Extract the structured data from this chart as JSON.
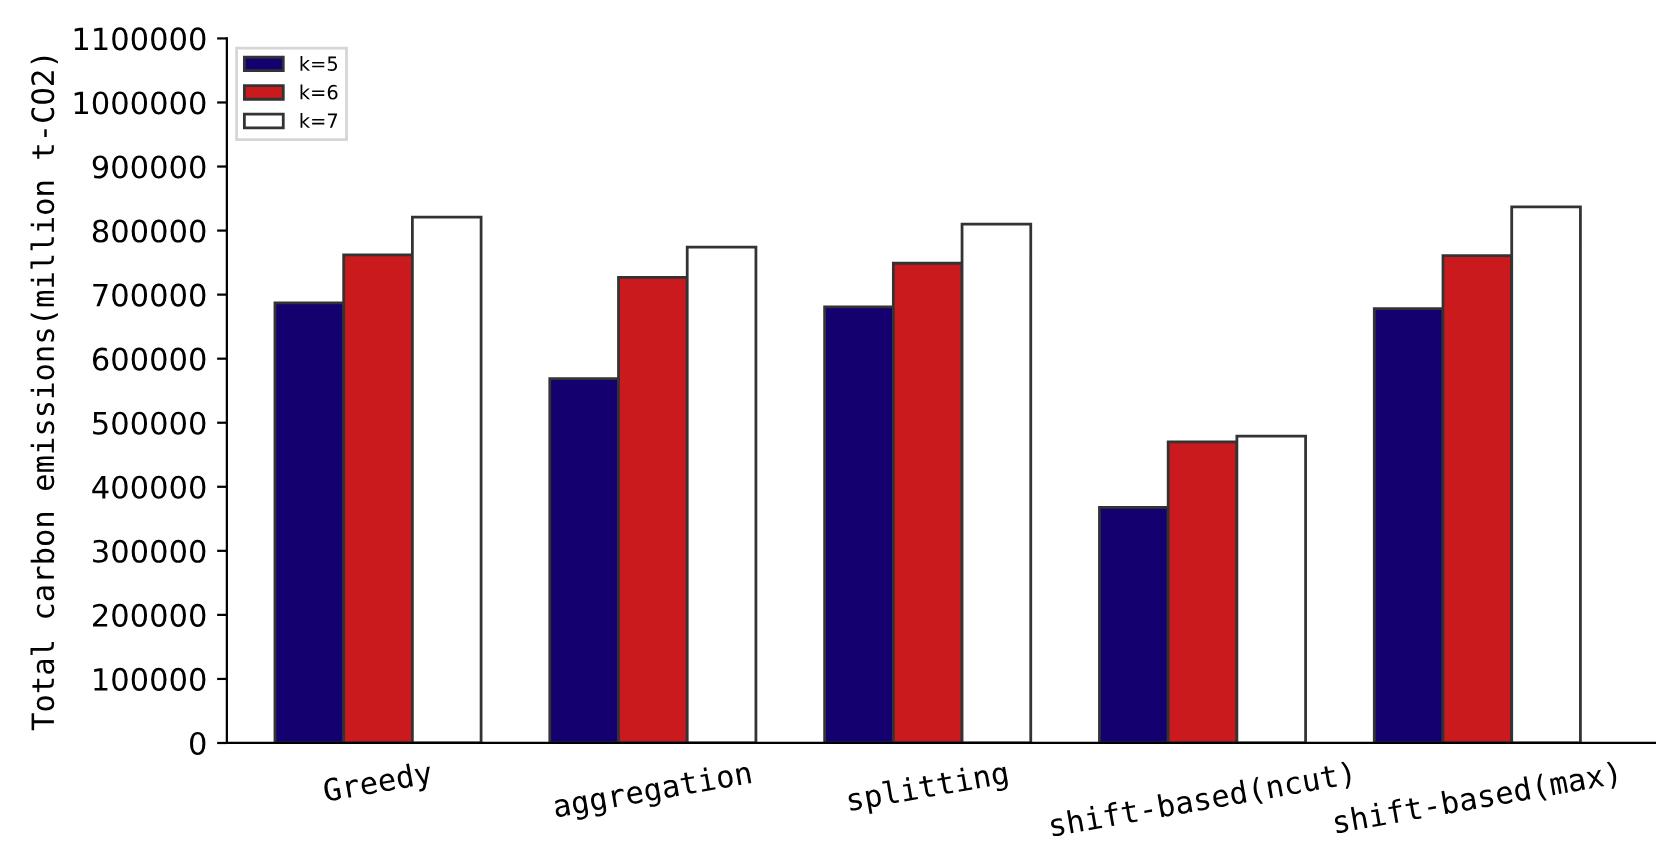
{
  "chart_data": {
    "type": "bar",
    "ylabel": "Total carbon emissions(million t-CO2)",
    "categories": [
      "Greedy",
      "aggregation",
      "splitting",
      "shift-based(ncut)",
      "shift-based(max)"
    ],
    "series": [
      {
        "name": "k=5",
        "color": "#14006e",
        "values": [
          687000,
          569000,
          681000,
          368000,
          678000
        ]
      },
      {
        "name": "k=6",
        "color": "#cb1a1e",
        "values": [
          762000,
          727000,
          749000,
          470000,
          761000
        ]
      },
      {
        "name": "k=7",
        "color": "#ffffff",
        "values": [
          821000,
          774000,
          810000,
          479000,
          837000
        ]
      }
    ],
    "ylim": [
      0,
      1100000
    ],
    "yticks": [
      0,
      100000,
      200000,
      300000,
      400000,
      500000,
      600000,
      700000,
      800000,
      900000,
      1000000,
      1100000
    ],
    "grid": false,
    "legend": "top left"
  }
}
